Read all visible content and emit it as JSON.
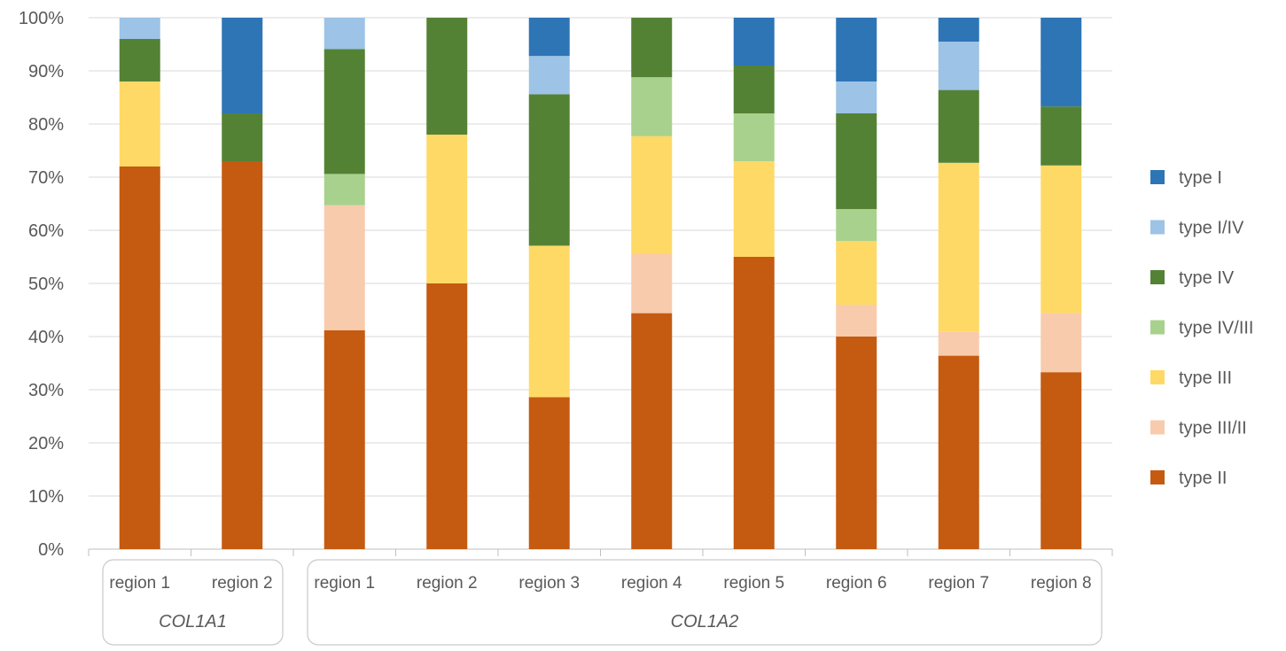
{
  "chart_data": {
    "type": "bar",
    "stacked": true,
    "percent": true,
    "title": "",
    "xlabel": "",
    "ylabel": "",
    "ylim": [
      0,
      100
    ],
    "y_ticks": [
      "0%",
      "10%",
      "20%",
      "30%",
      "40%",
      "50%",
      "60%",
      "70%",
      "80%",
      "90%",
      "100%"
    ],
    "grid": true,
    "legend_position": "right",
    "categories": [
      "region 1",
      "region 2",
      "region 1",
      "region 2",
      "region 3",
      "region 4",
      "region 5",
      "region 6",
      "region 7",
      "region 8"
    ],
    "groups": [
      {
        "label": "COL1A1",
        "count": 2
      },
      {
        "label": "COL1A2",
        "count": 8
      }
    ],
    "series": [
      {
        "name": "type II",
        "color": "#C55A11",
        "values": [
          72,
          73,
          41.2,
          50,
          28.6,
          44.4,
          55,
          40,
          36.4,
          33.3
        ]
      },
      {
        "name": "type III/II",
        "color": "#F8CBAD",
        "values": [
          0,
          0,
          23.5,
          0,
          0,
          11.1,
          0,
          6,
          4.5,
          11.1
        ]
      },
      {
        "name": "type III",
        "color": "#FFD966",
        "values": [
          16,
          0,
          0,
          28,
          28.5,
          22.2,
          18,
          12,
          31.8,
          27.8
        ]
      },
      {
        "name": "type IV/III",
        "color": "#A9D18E",
        "values": [
          0,
          0,
          5.9,
          0,
          0,
          11.1,
          9,
          6,
          0,
          0
        ]
      },
      {
        "name": "type IV",
        "color": "#548235",
        "values": [
          8,
          9,
          23.5,
          22,
          28.5,
          11.2,
          9,
          18,
          13.7,
          11.1
        ]
      },
      {
        "name": "type I/IV",
        "color": "#9DC3E6",
        "values": [
          4,
          0,
          5.9,
          0,
          7.2,
          0,
          0,
          6,
          9.1,
          0
        ]
      },
      {
        "name": "type I",
        "color": "#2E75B6",
        "values": [
          0,
          18,
          0,
          0,
          7.2,
          0,
          9,
          12,
          4.5,
          16.7
        ]
      }
    ]
  }
}
